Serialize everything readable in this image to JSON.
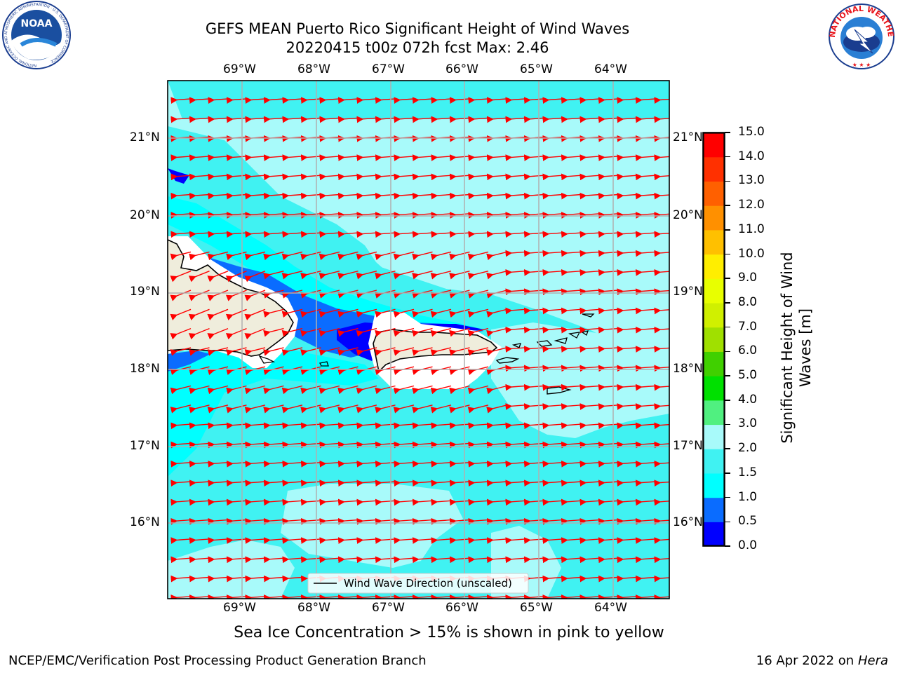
{
  "title_line1": "GEFS MEAN Puerto Rico Significant Height of Wind Waves",
  "title_line2": "20220415 t00z 072h fcst   Max: 2.46",
  "lon_ticks": [
    "69°W",
    "68°W",
    "67°W",
    "66°W",
    "65°W",
    "64°W"
  ],
  "lat_ticks": [
    "21°N",
    "20°N",
    "19°N",
    "18°N",
    "17°N",
    "16°N"
  ],
  "colorbar": {
    "label_line1": "Significant Height of Wind",
    "label_line2": "Waves [m]",
    "ticks": [
      "0.0",
      "0.5",
      "1.0",
      "1.5",
      "2.0",
      "3.0",
      "4.0",
      "5.0",
      "6.0",
      "7.0",
      "8.0",
      "9.0",
      "10.0",
      "11.0",
      "12.0",
      "13.0",
      "14.0",
      "15.0"
    ],
    "colors": [
      "#0000ff",
      "#0a6cff",
      "#00ffff",
      "#40f2f2",
      "#a8fafa",
      "#50f080",
      "#00e000",
      "#40d000",
      "#a0e000",
      "#d0f000",
      "#e8ff00",
      "#ffee00",
      "#ffc000",
      "#ff9000",
      "#ff6000",
      "#ff3000",
      "#ff0000"
    ]
  },
  "legend_label": "Wind Wave Direction (unscaled)",
  "sea_ice_note": "Sea Ice Concentration > 15% is shown in pink to yellow",
  "footer_left": "NCEP/EMC/Verification Post Processing Product Generation Branch",
  "footer_date": "16 Apr 2022 on ",
  "footer_machine": "Hera",
  "noaa_logo_text": "NOAA",
  "noaa_ring_text": "NATIONAL OCEANIC AND ATMOSPHERIC ADMINISTRATION · U.S. DEPARTMENT OF COMMERCE",
  "nws_ring_text": "NATIONAL WEATHER SERVICE",
  "colors": {
    "land": "#efeddc",
    "arrow": "#ff0000",
    "coast": "#000000"
  }
}
